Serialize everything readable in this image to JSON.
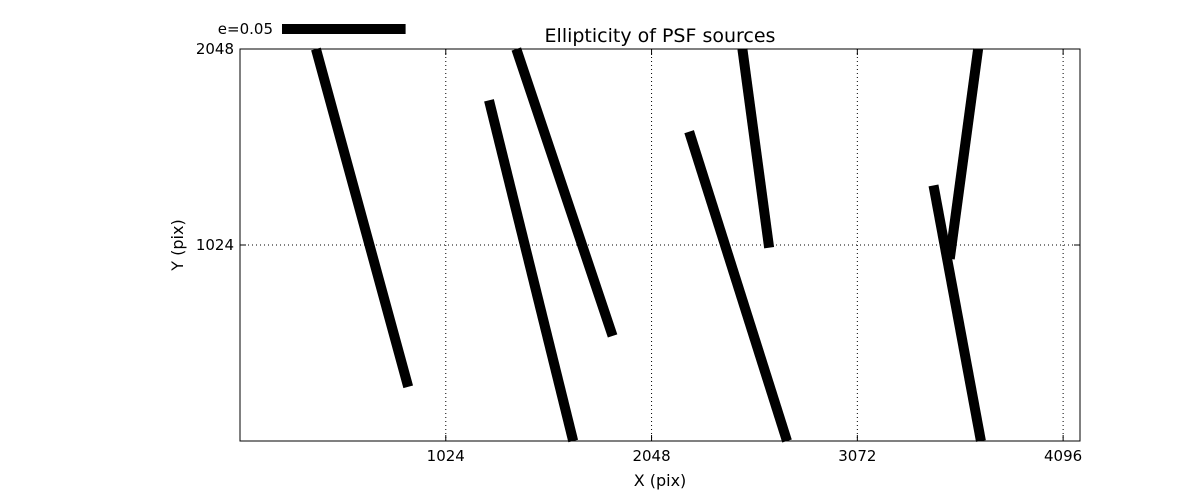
{
  "chart_data": {
    "type": "vector-field",
    "title": "Ellipticity of PSF sources",
    "xlabel": "X (pix)",
    "ylabel": "Y (pix)",
    "xlim": [
      0,
      4180
    ],
    "ylim": [
      0,
      2048
    ],
    "xticks": [
      1024,
      2048,
      3072,
      4096
    ],
    "yticks": [
      1024,
      2048
    ],
    "ytick_labels": [
      "1024",
      "2048"
    ],
    "grid": true,
    "color": "#000000",
    "legend": {
      "label": "e=0.05",
      "placement": "top-left",
      "length_pixels_data": 615
    },
    "sticks": [
      {
        "x1": 378,
        "y1": 2048,
        "x2": 837,
        "y2": 283
      },
      {
        "x1": 1239,
        "y1": 1780,
        "x2": 1658,
        "y2": 0
      },
      {
        "x1": 1375,
        "y1": 2048,
        "x2": 1854,
        "y2": 549
      },
      {
        "x1": 2235,
        "y1": 1616,
        "x2": 2722,
        "y2": 0
      },
      {
        "x1": 2500,
        "y1": 2048,
        "x2": 2633,
        "y2": 1010
      },
      {
        "x1": 3451,
        "y1": 1335,
        "x2": 3687,
        "y2": 0
      },
      {
        "x1": 3532,
        "y1": 952,
        "x2": 3673,
        "y2": 2048
      }
    ]
  }
}
